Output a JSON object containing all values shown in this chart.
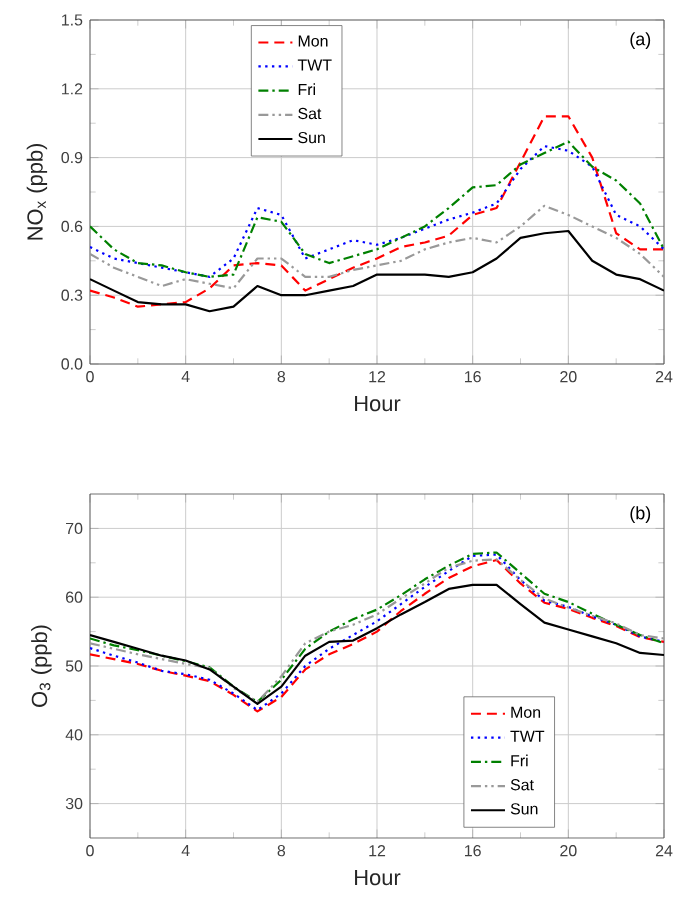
{
  "chart_data": [
    {
      "type": "line",
      "xlabel": "Hour",
      "ylabel": "NO$_{x}$ (ppb)",
      "annotations": [
        "(a)"
      ],
      "x": [
        0,
        1,
        2,
        3,
        4,
        5,
        6,
        7,
        8,
        9,
        10,
        11,
        12,
        13,
        14,
        15,
        16,
        17,
        18,
        19,
        20,
        21,
        22,
        23,
        24
      ],
      "xlim": [
        0,
        24
      ],
      "xticks": [
        0,
        4,
        8,
        12,
        16,
        20,
        24
      ],
      "ylim": [
        0,
        1.5
      ],
      "yticks": [
        {
          "value": 0,
          "label": "0.0"
        },
        0.3,
        0.6,
        0.9,
        1.2,
        1.5
      ],
      "grid": true,
      "legend": "top center",
      "marker": "none",
      "series": [
        {
          "name": "Mon",
          "color": "#ff0000",
          "line_style": "dashed",
          "values": [
            0.32,
            0.29,
            0.25,
            0.26,
            0.27,
            0.33,
            0.43,
            0.44,
            0.43,
            0.32,
            0.37,
            0.42,
            0.46,
            0.51,
            0.53,
            0.56,
            0.65,
            0.68,
            0.88,
            1.08,
            1.08,
            0.9,
            0.57,
            0.5,
            0.5
          ]
        },
        {
          "name": "TWT",
          "color": "#0000ff",
          "line_style": "dotted",
          "values": [
            0.51,
            0.46,
            0.44,
            0.42,
            0.4,
            0.38,
            0.46,
            0.68,
            0.65,
            0.46,
            0.5,
            0.54,
            0.52,
            0.55,
            0.59,
            0.63,
            0.66,
            0.7,
            0.85,
            0.95,
            0.93,
            0.86,
            0.65,
            0.6,
            0.5
          ]
        },
        {
          "name": "Fri",
          "color": "#008000",
          "line_style": "dashdot",
          "values": [
            0.6,
            0.5,
            0.44,
            0.43,
            0.4,
            0.38,
            0.39,
            0.64,
            0.62,
            0.48,
            0.44,
            0.47,
            0.5,
            0.55,
            0.6,
            0.68,
            0.77,
            0.78,
            0.87,
            0.92,
            0.97,
            0.86,
            0.8,
            0.7,
            0.5
          ]
        },
        {
          "name": "Sat",
          "color": "#999999",
          "line_style": "dashdotdot",
          "values": [
            0.48,
            0.42,
            0.38,
            0.34,
            0.37,
            0.35,
            0.33,
            0.46,
            0.46,
            0.38,
            0.38,
            0.41,
            0.43,
            0.45,
            0.5,
            0.53,
            0.55,
            0.53,
            0.6,
            0.69,
            0.65,
            0.6,
            0.55,
            0.48,
            0.38
          ]
        },
        {
          "name": "Sun",
          "color": "#000000",
          "line_style": "solid",
          "values": [
            0.37,
            0.32,
            0.27,
            0.26,
            0.26,
            0.23,
            0.25,
            0.34,
            0.3,
            0.3,
            0.32,
            0.34,
            0.39,
            0.39,
            0.39,
            0.38,
            0.4,
            0.46,
            0.55,
            0.57,
            0.58,
            0.45,
            0.39,
            0.37,
            0.32
          ]
        }
      ]
    },
    {
      "type": "line",
      "xlabel": "Hour",
      "ylabel": "O$_{3}$ (ppb)",
      "annotations": [
        "(b)"
      ],
      "x": [
        0,
        1,
        2,
        3,
        4,
        5,
        6,
        7,
        8,
        9,
        10,
        11,
        12,
        13,
        14,
        15,
        16,
        17,
        18,
        19,
        20,
        21,
        22,
        23,
        24
      ],
      "xlim": [
        0,
        24
      ],
      "xticks": [
        0,
        4,
        8,
        12,
        16,
        20,
        24
      ],
      "ylim": [
        25,
        75
      ],
      "yticks": [
        30,
        40,
        50,
        60,
        70
      ],
      "grid": true,
      "legend": "bottom right",
      "marker": "none",
      "series": [
        {
          "name": "Mon",
          "color": "#ff0000",
          "line_style": "dashed",
          "values": [
            51.7,
            51,
            50.3,
            49.3,
            48.6,
            47.8,
            45.8,
            43.4,
            45.5,
            49.5,
            51.7,
            53.2,
            55,
            58,
            60.5,
            62.8,
            64.5,
            65.4,
            62,
            59.2,
            58.3,
            57,
            55.8,
            54.2,
            53.5
          ]
        },
        {
          "name": "TWT",
          "color": "#0000ff",
          "line_style": "dotted",
          "values": [
            52.6,
            51.5,
            50.5,
            49.3,
            48.8,
            48,
            46,
            43.6,
            46,
            50,
            52.5,
            54.5,
            56.5,
            59,
            61.5,
            63.8,
            66,
            66.2,
            62.5,
            59.5,
            58.6,
            57.2,
            56,
            54.3,
            53.5
          ]
        },
        {
          "name": "Fri",
          "color": "#008000",
          "line_style": "dashdot",
          "values": [
            54,
            53,
            52.3,
            51.5,
            50.7,
            49.8,
            47,
            44.8,
            48,
            52.5,
            55,
            56.8,
            58.2,
            60.3,
            62.6,
            64.6,
            66.3,
            66.5,
            63.5,
            60.5,
            59.3,
            57.6,
            56,
            54.5,
            53.3
          ]
        },
        {
          "name": "Sat",
          "color": "#999999",
          "line_style": "dashdotdot",
          "values": [
            53.3,
            52.5,
            51.7,
            51,
            50.3,
            49.7,
            46.8,
            44.8,
            48.5,
            53.3,
            55,
            56,
            57.5,
            59.8,
            62,
            64.3,
            65.3,
            65.5,
            62.5,
            59.8,
            58.5,
            57.3,
            56.2,
            54.5,
            54
          ]
        },
        {
          "name": "Sun",
          "color": "#000000",
          "line_style": "solid",
          "values": [
            54.5,
            53.5,
            52.5,
            51.5,
            50.8,
            49.5,
            47,
            44.5,
            47,
            51.5,
            53.5,
            53.7,
            55.5,
            57.5,
            59.3,
            61.2,
            61.8,
            61.8,
            59,
            56.3,
            55.3,
            54.3,
            53.3,
            51.9,
            51.6
          ]
        }
      ]
    }
  ]
}
